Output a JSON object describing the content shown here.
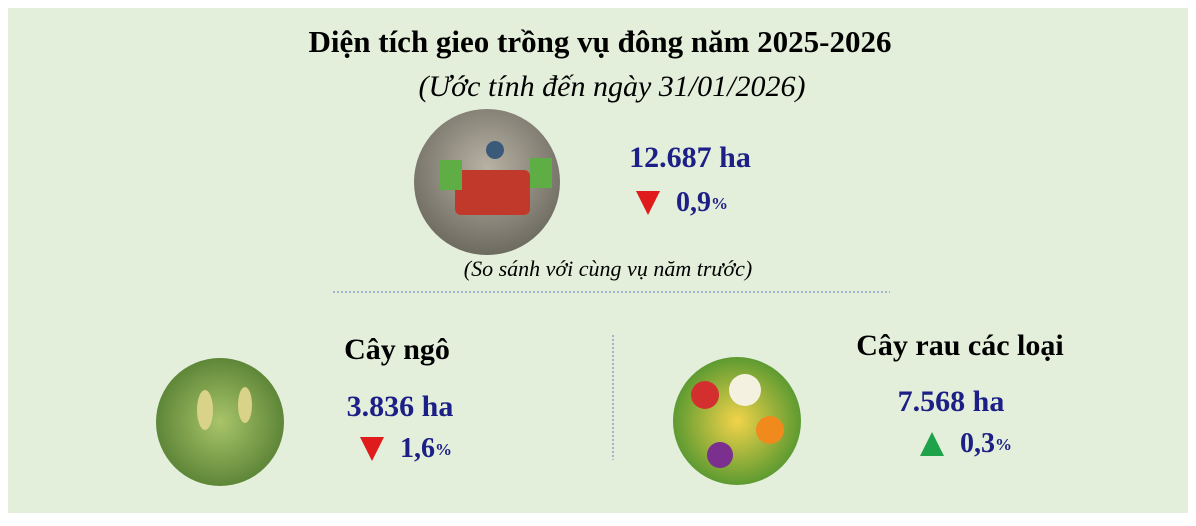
{
  "header": {
    "title": "Diện tích gieo trồng vụ đông năm 2025-2026",
    "subtitle": "(Ước tính đến ngày 31/01/2026)"
  },
  "total": {
    "value": "12.687",
    "unit": "ha",
    "change": "0,9",
    "change_unit": "%",
    "direction": "down"
  },
  "note": "(So sánh với cùng vụ năm trước)",
  "items": [
    {
      "name": "Cây ngô",
      "value": "3.836",
      "unit": "ha",
      "change": "1,6",
      "change_unit": "%",
      "direction": "down"
    },
    {
      "name": "Cây rau các loại",
      "value": "7.568",
      "unit": "ha",
      "change": "0,3",
      "change_unit": "%",
      "direction": "up"
    }
  ]
}
